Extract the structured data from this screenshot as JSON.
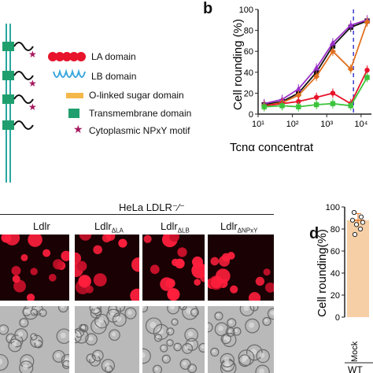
{
  "panel_a": {
    "legend": [
      {
        "label": "LA domain",
        "icon": "la-domain-icon",
        "color": "#e8142b"
      },
      {
        "label": "LB domain",
        "icon": "lb-domain-icon",
        "color": "#3aa6dd"
      },
      {
        "label": "O-linked sugar domain",
        "icon": "o-linked-sugar-icon",
        "color": "#f4b84a"
      },
      {
        "label": "Transmembrane domain",
        "icon": "transmembrane-icon",
        "color": "#1f9f6e"
      },
      {
        "label": "Cytoplasmic NPxY motif",
        "icon": "npxy-motif-icon",
        "color": "#a4185f"
      }
    ]
  },
  "panel_b": {
    "letter": "b",
    "ylabel": "Cell rounding (%)",
    "xlabel": "Tcnα concentrat",
    "yticks": [
      "0",
      "20",
      "40",
      "60",
      "80",
      "100"
    ],
    "xticks": [
      "10¹",
      "10²",
      "10³",
      "10⁴"
    ]
  },
  "panel_c": {
    "header": "HeLa LDLR⁻⁄⁻",
    "columns": [
      {
        "main": "Ldlr",
        "sub": ""
      },
      {
        "main": "Ldlr",
        "sub": "ΔLA"
      },
      {
        "main": "Ldlr",
        "sub": "ΔLB"
      },
      {
        "main": "Ldlr",
        "sub": "ΔNPxY"
      }
    ]
  },
  "panel_d": {
    "letter": "d",
    "ylabel": "Cell rounding(%)",
    "yticks": [
      "0",
      "20",
      "40",
      "60",
      "80",
      "100"
    ],
    "xtick": "Mock",
    "group": "WT"
  },
  "chart_data": [
    {
      "type": "line",
      "x_scale": "log",
      "xlim": [
        10,
        20000
      ],
      "ylim": [
        0,
        100
      ],
      "ylabel": "Cell rounding (%)",
      "xlabel": "Tcnα concentrat",
      "reference_line_x": 6000,
      "series": [
        {
          "color": "#111111",
          "marker": "square",
          "x": [
            15,
            50,
            150,
            500,
            1500,
            5000,
            15000
          ],
          "y": [
            9,
            12,
            20,
            40,
            65,
            83,
            89
          ]
        },
        {
          "color": "#9b30c8",
          "marker": "triangle",
          "x": [
            15,
            50,
            150,
            500,
            1500,
            5000,
            15000
          ],
          "y": [
            10,
            14,
            24,
            44,
            68,
            85,
            90
          ]
        },
        {
          "color": "#e07020",
          "marker": "diamond",
          "x": [
            15,
            50,
            150,
            500,
            1500,
            5000,
            15000
          ],
          "y": [
            8,
            11,
            18,
            36,
            60,
            43,
            88
          ]
        },
        {
          "color": "#e8142b",
          "marker": "circle",
          "x": [
            15,
            50,
            150,
            500,
            1500,
            5000,
            15000
          ],
          "y": [
            8,
            10,
            12,
            16,
            20,
            10,
            42
          ]
        },
        {
          "color": "#3cc43c",
          "marker": "square",
          "x": [
            15,
            50,
            150,
            500,
            1500,
            5000,
            15000
          ],
          "y": [
            7,
            8,
            7,
            9,
            10,
            8,
            35
          ]
        }
      ]
    },
    {
      "type": "bar",
      "categories": [
        "Mock"
      ],
      "values": [
        88
      ],
      "error": [
        6
      ],
      "points": [
        95,
        91,
        88,
        86,
        84,
        80,
        75
      ],
      "ylim": [
        0,
        100
      ],
      "ylabel": "Cell rounding(%)",
      "group": "WT",
      "color": "#f7cfa6"
    }
  ]
}
